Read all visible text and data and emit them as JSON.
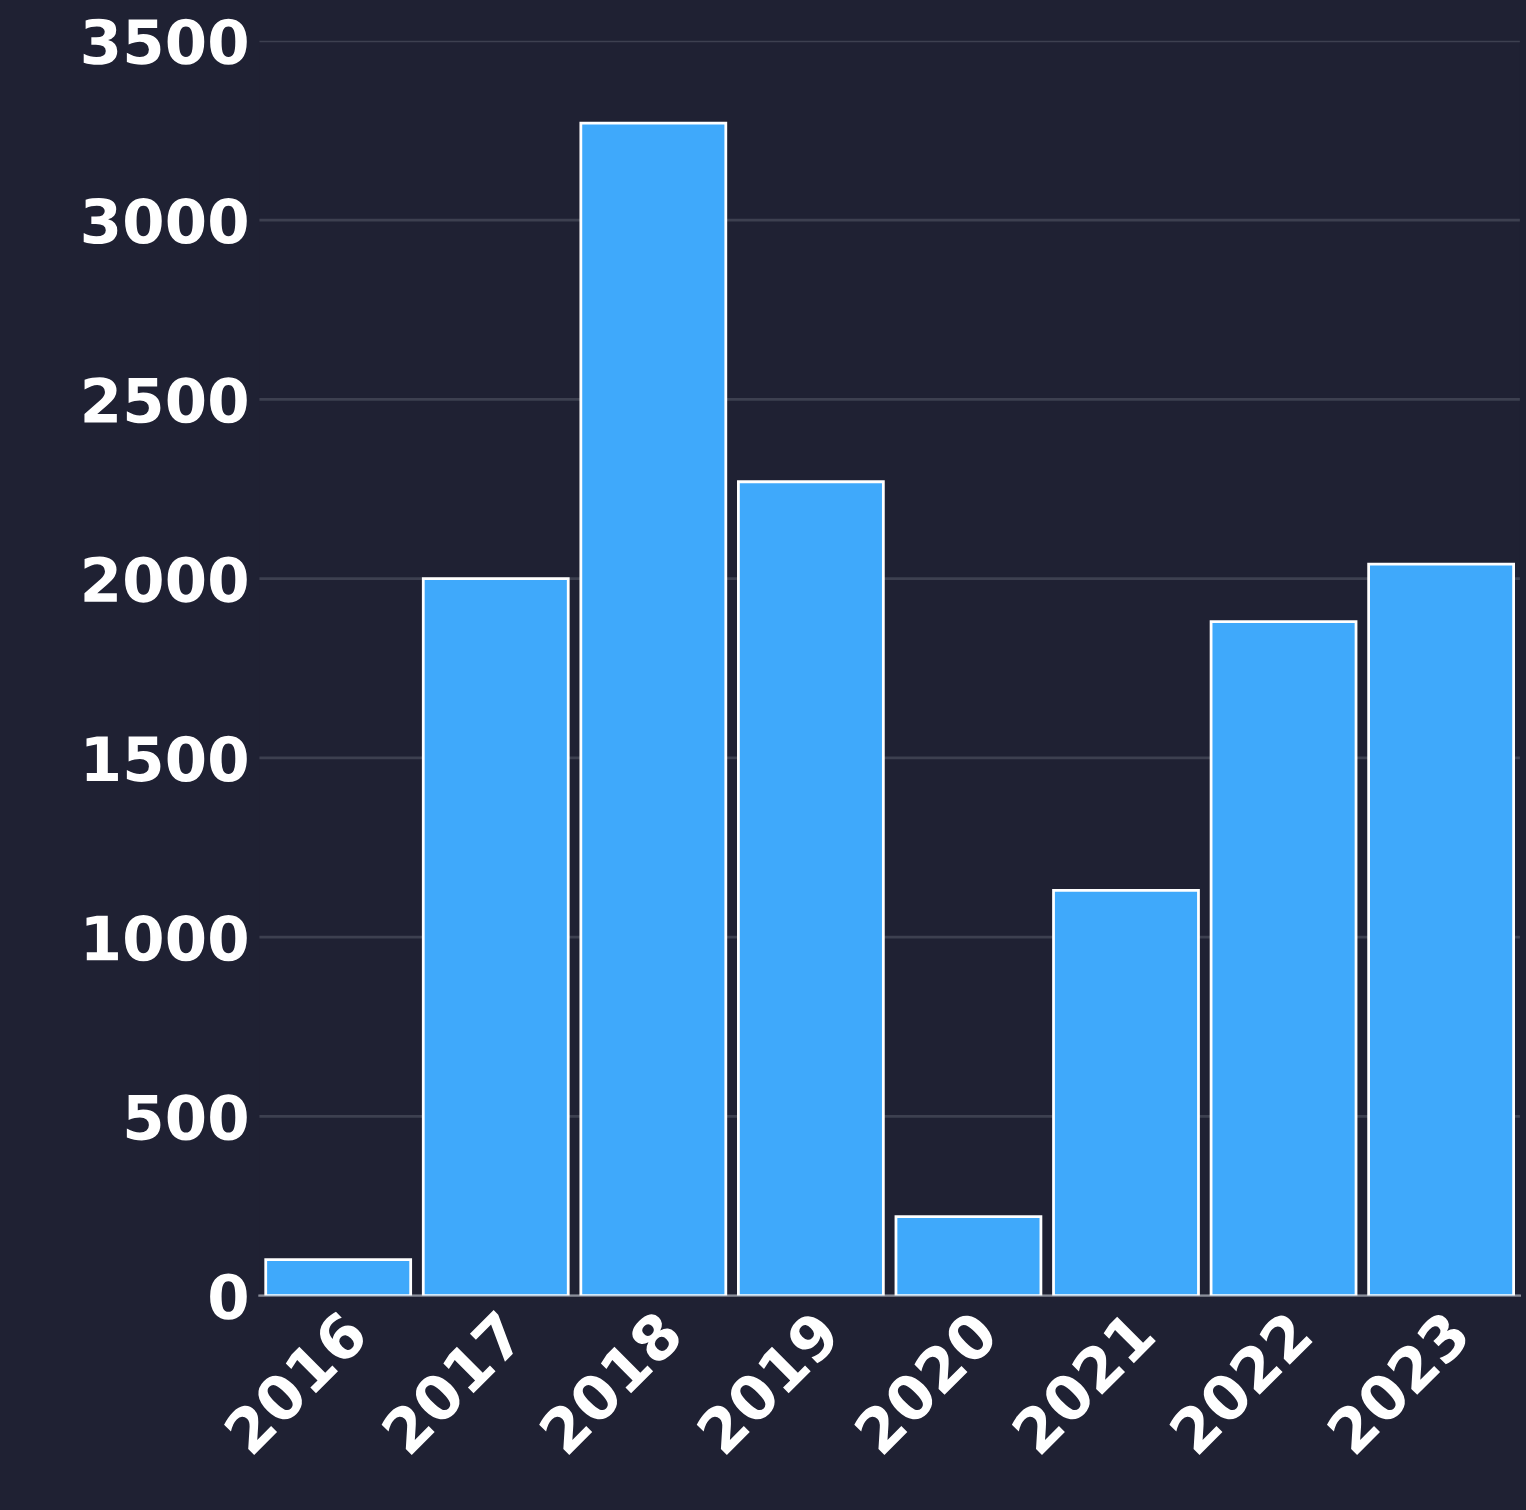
{
  "chart_data": {
    "type": "bar",
    "categories": [
      "2016",
      "2017",
      "2018",
      "2019",
      "2020",
      "2021",
      "2022",
      "2023"
    ],
    "values": [
      100,
      2000,
      3270,
      2270,
      220,
      1130,
      1880,
      2040
    ],
    "color": "#3fa9fb",
    "ylim": [
      0,
      3500
    ],
    "yticks": [
      0,
      500,
      1000,
      1500,
      2000,
      2500,
      3000,
      3500
    ],
    "grid": "y"
  }
}
